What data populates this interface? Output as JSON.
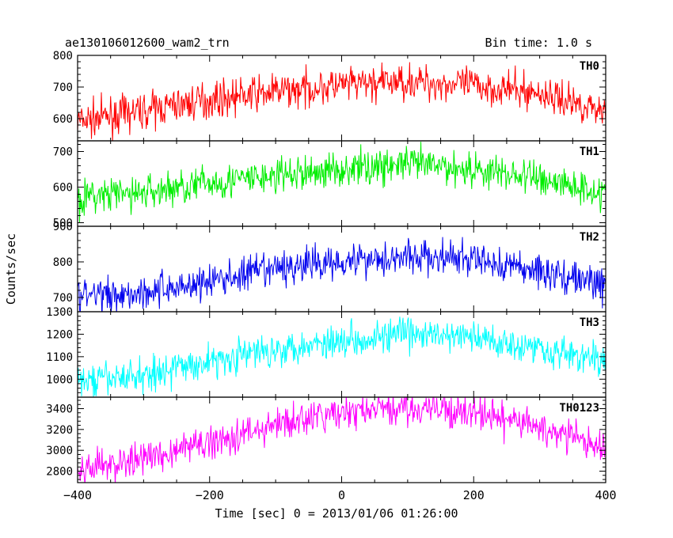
{
  "header": {
    "title": "ae130106012600_wam2_trn",
    "bin_time": "Bin time: 1.0 s"
  },
  "chart_data": {
    "type": "line",
    "xlabel": "Time [sec] 0 = 2013/01/06 01:26:00",
    "ylabel": "Counts/sec",
    "xlim": [
      -400,
      400
    ],
    "x_ticks": [
      -400,
      -200,
      0,
      200,
      400
    ],
    "x_tick_labels": [
      "−400",
      "−200",
      "0",
      "200",
      "400"
    ],
    "noise_seed": 7,
    "panels": [
      {
        "name": "TH0",
        "color": "#ff0000",
        "ylim": [
          530,
          800
        ],
        "y_ticks": [
          600,
          700,
          800
        ],
        "noise": 55,
        "trend": [
          [
            -400,
            590
          ],
          [
            -300,
            625
          ],
          [
            -200,
            660
          ],
          [
            -100,
            685
          ],
          [
            0,
            705
          ],
          [
            100,
            718
          ],
          [
            200,
            705
          ],
          [
            300,
            680
          ],
          [
            400,
            625
          ]
        ]
      },
      {
        "name": "TH1",
        "color": "#00ee00",
        "ylim": [
          490,
          730
        ],
        "y_ticks": [
          500,
          600,
          700
        ],
        "noise": 50,
        "trend": [
          [
            -400,
            570
          ],
          [
            -300,
            585
          ],
          [
            -200,
            612
          ],
          [
            -100,
            630
          ],
          [
            0,
            650
          ],
          [
            100,
            665
          ],
          [
            200,
            650
          ],
          [
            300,
            625
          ],
          [
            400,
            585
          ]
        ]
      },
      {
        "name": "TH2",
        "color": "#0000ee",
        "ylim": [
          660,
          900
        ],
        "y_ticks": [
          700,
          800,
          900
        ],
        "noise": 50,
        "trend": [
          [
            -400,
            705
          ],
          [
            -300,
            715
          ],
          [
            -200,
            745
          ],
          [
            -100,
            780
          ],
          [
            0,
            805
          ],
          [
            100,
            815
          ],
          [
            200,
            805
          ],
          [
            300,
            775
          ],
          [
            400,
            735
          ]
        ]
      },
      {
        "name": "TH3",
        "color": "#00ffff",
        "ylim": [
          920,
          1300
        ],
        "y_ticks": [
          1000,
          1100,
          1200,
          1300
        ],
        "noise": 75,
        "trend": [
          [
            -400,
            985
          ],
          [
            -300,
            1020
          ],
          [
            -200,
            1080
          ],
          [
            -100,
            1135
          ],
          [
            0,
            1175
          ],
          [
            100,
            1200
          ],
          [
            200,
            1185
          ],
          [
            300,
            1140
          ],
          [
            400,
            1075
          ]
        ]
      },
      {
        "name": "TH0123",
        "color": "#ff00ff",
        "ylim": [
          2690,
          3510
        ],
        "y_ticks": [
          2800,
          3000,
          3200,
          3400
        ],
        "noise": 160,
        "trend": [
          [
            -400,
            2805
          ],
          [
            -300,
            2920
          ],
          [
            -200,
            3080
          ],
          [
            -100,
            3240
          ],
          [
            0,
            3360
          ],
          [
            100,
            3410
          ],
          [
            200,
            3360
          ],
          [
            300,
            3220
          ],
          [
            400,
            3020
          ]
        ]
      }
    ]
  }
}
